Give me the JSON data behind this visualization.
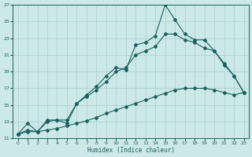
{
  "xlabel": "Humidex (Indice chaleur)",
  "bg_color": "#cce8e8",
  "grid_color": "#aacece",
  "line_color": "#1a6060",
  "xlim": [
    -0.5,
    23.5
  ],
  "ylim": [
    11,
    27
  ],
  "xticks": [
    0,
    1,
    2,
    3,
    4,
    5,
    6,
    7,
    8,
    9,
    10,
    11,
    12,
    13,
    14,
    15,
    16,
    17,
    18,
    19,
    20,
    21,
    22,
    23
  ],
  "yticks": [
    11,
    13,
    15,
    17,
    19,
    21,
    23,
    25,
    27
  ],
  "series1_x": [
    0,
    1,
    2,
    3,
    4,
    5,
    6,
    7,
    8,
    9,
    10,
    11,
    12,
    13,
    14,
    15,
    16,
    17,
    18,
    19,
    20,
    21,
    22,
    23
  ],
  "series1_y": [
    11.5,
    12.8,
    11.8,
    13.0,
    13.2,
    12.8,
    15.2,
    16.2,
    17.2,
    18.5,
    19.5,
    19.2,
    22.2,
    22.5,
    23.3,
    27.0,
    25.2,
    23.5,
    22.8,
    22.8,
    21.5,
    19.8,
    18.5,
    16.5
  ],
  "series2_x": [
    0,
    1,
    2,
    3,
    4,
    5,
    6,
    7,
    8,
    9,
    10,
    11,
    12,
    13,
    14,
    15,
    16,
    17,
    18,
    19,
    20,
    21,
    22,
    23
  ],
  "series2_y": [
    11.5,
    12.0,
    11.8,
    13.2,
    13.2,
    13.2,
    15.2,
    16.0,
    16.8,
    17.8,
    19.0,
    19.5,
    21.0,
    21.5,
    22.0,
    23.5,
    23.5,
    22.8,
    22.5,
    21.8,
    21.5,
    20.0,
    18.5,
    16.5
  ],
  "series3_x": [
    0,
    1,
    2,
    3,
    4,
    5,
    6,
    7,
    8,
    9,
    10,
    11,
    12,
    13,
    14,
    15,
    16,
    17,
    18,
    19,
    20,
    21,
    22,
    23
  ],
  "series3_y": [
    11.5,
    11.8,
    11.8,
    12.0,
    12.2,
    12.5,
    12.8,
    13.1,
    13.5,
    14.0,
    14.4,
    14.8,
    15.2,
    15.6,
    16.0,
    16.4,
    16.8,
    17.0,
    17.0,
    17.0,
    16.8,
    16.5,
    16.2,
    16.5
  ],
  "markersize": 2.0,
  "linewidth": 0.8
}
